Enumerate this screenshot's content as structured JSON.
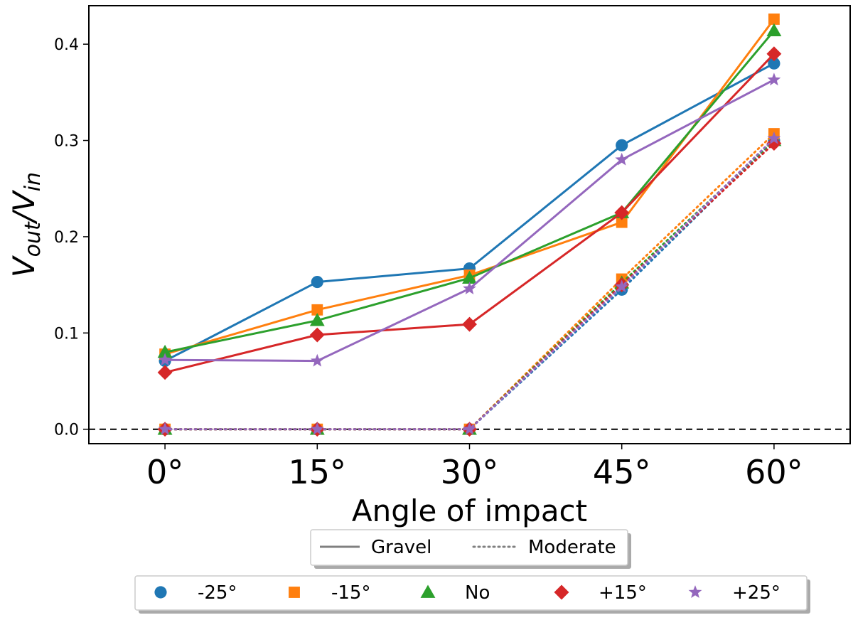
{
  "chart_data": {
    "type": "line",
    "title": "",
    "xlabel": "Angle of impact",
    "ylabel": "V_out/V_in",
    "ylabel_main_1": "V",
    "ylabel_sub_1": "out",
    "ylabel_slash": "/V",
    "ylabel_sub_2": "in",
    "categories": [
      "0°",
      "15°",
      "30°",
      "45°",
      "60°"
    ],
    "x_values": [
      0,
      15,
      30,
      45,
      60
    ],
    "xlim": [
      -7.5,
      67.5
    ],
    "ylim": [
      -0.015,
      0.44
    ],
    "yticks": [
      0.0,
      0.1,
      0.2,
      0.3,
      0.4
    ],
    "ytick_labels": [
      "0.0",
      "0.1",
      "0.2",
      "0.3",
      "0.4"
    ],
    "reference_line": {
      "y": 0.0,
      "style": "dashed",
      "color": "#000000"
    },
    "series": [
      {
        "name": "-25°",
        "color": "#1f77b4",
        "marker": "circle",
        "gravel": [
          0.071,
          0.153,
          0.167,
          0.295,
          0.38
        ],
        "moderate": [
          0.0,
          0.0,
          0.0,
          0.145,
          0.3
        ]
      },
      {
        "name": "-15°",
        "color": "#ff7f0e",
        "marker": "square",
        "gravel": [
          0.078,
          0.124,
          0.16,
          0.215,
          0.426
        ],
        "moderate": [
          0.0,
          0.0,
          0.0,
          0.156,
          0.307
        ]
      },
      {
        "name": "No",
        "color": "#2ca02c",
        "marker": "triangle",
        "gravel": [
          0.08,
          0.113,
          0.157,
          0.225,
          0.414
        ],
        "moderate": [
          0.0,
          0.0,
          0.0,
          0.152,
          0.3
        ]
      },
      {
        "name": "+15°",
        "color": "#d62728",
        "marker": "diamond",
        "gravel": [
          0.059,
          0.098,
          0.109,
          0.225,
          0.39
        ],
        "moderate": [
          0.0,
          0.0,
          0.0,
          0.15,
          0.297
        ]
      },
      {
        "name": "+25°",
        "color": "#9467bd",
        "marker": "star",
        "gravel": [
          0.072,
          0.071,
          0.146,
          0.28,
          0.363
        ],
        "moderate": [
          0.0,
          0.0,
          0.0,
          0.148,
          0.302
        ]
      }
    ],
    "line_style_legend": [
      {
        "label": "Gravel",
        "style": "solid"
      },
      {
        "label": "Moderate",
        "style": "dotted"
      }
    ],
    "legend_placement": "bottom"
  }
}
